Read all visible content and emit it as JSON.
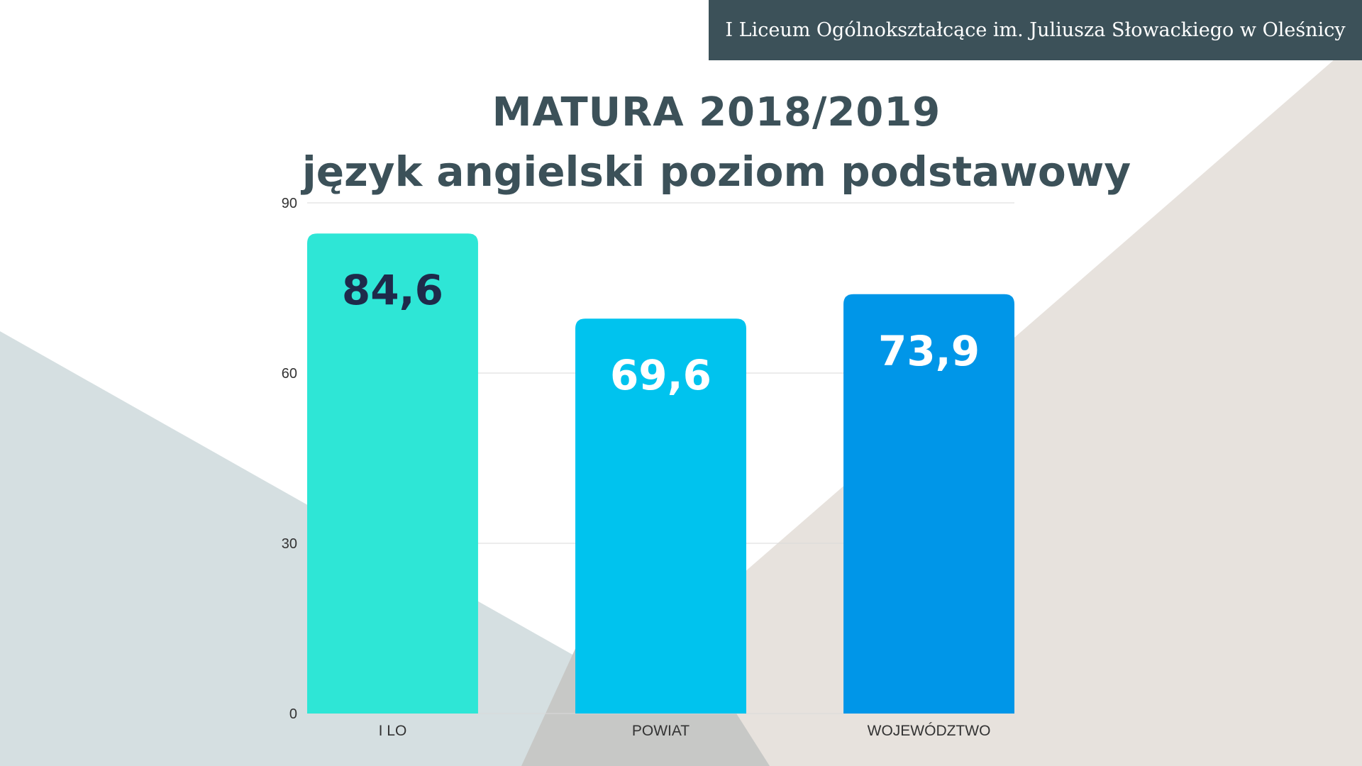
{
  "header": {
    "school_name": "I Liceum Ogólnokształcące im. Juliusza Słowackiego w Oleśnicy"
  },
  "colors": {
    "banner": "#3c5159",
    "title": "#3c5159",
    "bg_left_triangle": "#d5dfe1",
    "bg_right_triangle": "#e7e2dd",
    "bg_overlap": "#c7c8c6",
    "gridline": "#d9d9d9",
    "axis_text": "#333333"
  },
  "chart_data": {
    "type": "bar",
    "title": "MATURA 2018/2019",
    "subtitle": "język angielski poziom podstawowy",
    "categories": [
      "I LO",
      "POWIAT",
      "WOJEWÓDZTWO"
    ],
    "values": [
      84.6,
      69.6,
      73.9
    ],
    "value_labels": [
      "84,6",
      "69,6",
      "73,9"
    ],
    "bar_colors": [
      "#2ee6d6",
      "#00c3ee",
      "#0096e8"
    ],
    "label_colors": [
      "#1e2a4a",
      "#ffffff",
      "#ffffff"
    ],
    "ylim": [
      0,
      90
    ],
    "yticks": [
      0,
      30,
      60,
      90
    ],
    "grid": true,
    "legend": "none"
  }
}
